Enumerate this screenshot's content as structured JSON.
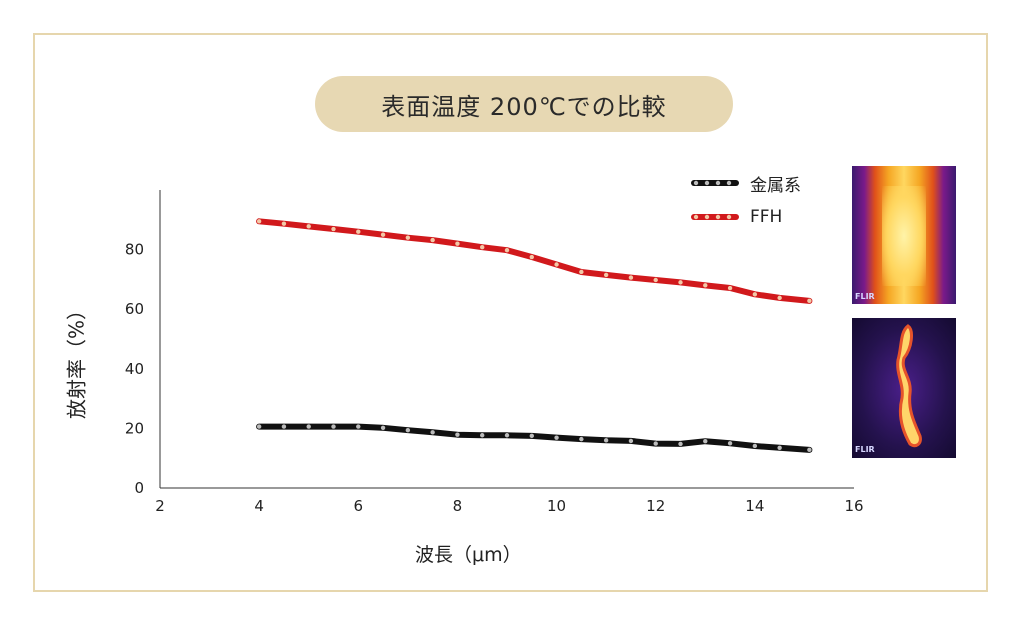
{
  "title": "表面温度 200℃での比較",
  "colors": {
    "frame": "#e6d6ad",
    "pill": "#e7d8b3",
    "metal": "#111111",
    "ffh": "#d1191c"
  },
  "legend": [
    {
      "label": "金属系",
      "color": "#111111"
    },
    {
      "label": "FFH",
      "color": "#d1191c"
    }
  ],
  "thermal_images": [
    {
      "caption": "FLIR"
    },
    {
      "caption": "FLIR"
    }
  ],
  "chart_data": {
    "type": "line",
    "xlabel": "波長（μm）",
    "ylabel": "放射率（%）",
    "xlim": [
      2,
      16
    ],
    "ylim": [
      0,
      100
    ],
    "xticks": [
      2,
      4,
      6,
      8,
      10,
      12,
      14,
      16
    ],
    "yticks": [
      0,
      20,
      40,
      60,
      80
    ],
    "series": [
      {
        "name": "FFH",
        "color": "#d1191c",
        "x": [
          4,
          4.5,
          5,
          5.5,
          6,
          6.5,
          7,
          7.5,
          8,
          8.5,
          9,
          9.5,
          10,
          10.5,
          11,
          11.5,
          12,
          12.5,
          13,
          13.5,
          14,
          14.5,
          15.1
        ],
        "y": [
          89.5,
          88.7,
          87.8,
          86.9,
          86,
          85,
          84,
          83.2,
          82,
          80.8,
          79.8,
          77.5,
          75,
          72.5,
          71.5,
          70.6,
          69.8,
          69,
          68,
          67.1,
          65,
          63.8,
          62.8
        ]
      },
      {
        "name": "金属系",
        "color": "#111111",
        "x": [
          4,
          4.5,
          5,
          5.5,
          6,
          6.5,
          7,
          7.5,
          8,
          8.5,
          9,
          9.5,
          10,
          10.5,
          11,
          11.5,
          12,
          12.5,
          13,
          13.5,
          14,
          14.5,
          15.1
        ],
        "y": [
          20.6,
          20.6,
          20.6,
          20.6,
          20.6,
          20.2,
          19.4,
          18.7,
          17.9,
          17.7,
          17.7,
          17.5,
          16.9,
          16.4,
          16,
          15.8,
          14.9,
          14.8,
          15.7,
          15.0,
          14.1,
          13.5,
          12.8
        ]
      }
    ]
  }
}
